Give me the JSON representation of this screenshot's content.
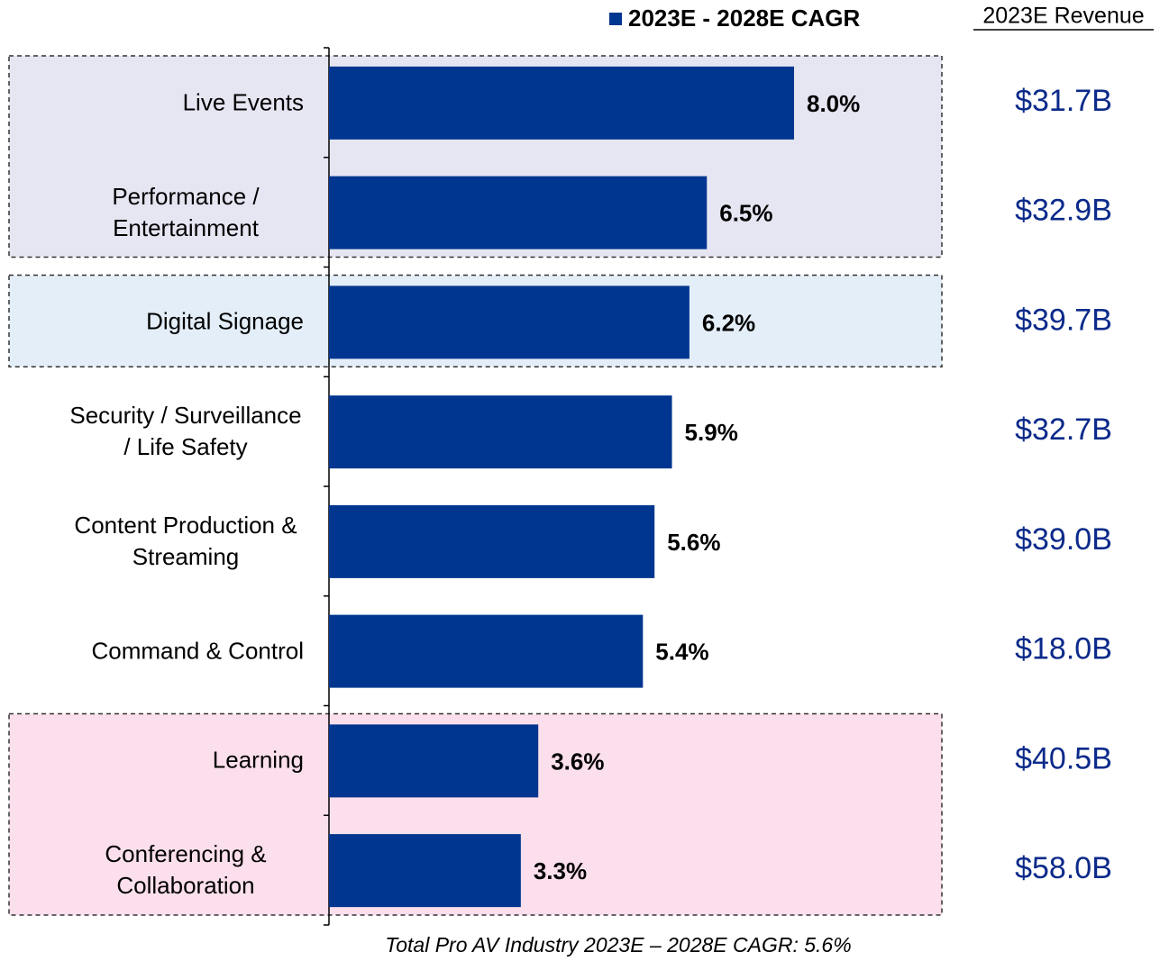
{
  "chart_data": {
    "type": "bar",
    "orientation": "horizontal",
    "categories": [
      "Live Events",
      "Performance / Entertainment",
      "Digital Signage",
      "Security / Surveillance / Life Safety",
      "Content Production & Streaming",
      "Command & Control",
      "Learning",
      "Conferencing & Collaboration"
    ],
    "series": [
      {
        "name": "2023E - 2028E CAGR",
        "color": "#00368f",
        "values": [
          8.0,
          6.5,
          6.2,
          5.9,
          5.6,
          5.4,
          3.6,
          3.3
        ],
        "value_labels": [
          "8.0%",
          "6.5%",
          "6.2%",
          "5.9%",
          "5.6%",
          "5.4%",
          "3.6%",
          "3.3%"
        ]
      }
    ],
    "xlim": [
      0,
      8
    ],
    "revenue": {
      "header": "2023E Revenue",
      "color": "#0b2a8a",
      "labels": [
        "$31.7B",
        "$32.9B",
        "$39.7B",
        "$32.7B",
        "$39.0B",
        "$18.0B",
        "$40.5B",
        "$58.0B"
      ]
    },
    "bands": [
      {
        "start": 0,
        "end": 1,
        "color": "#e6e5f2"
      },
      {
        "start": 2,
        "end": 2,
        "color": "#e3eef8"
      },
      {
        "start": 6,
        "end": 7,
        "color": "#fcdfec"
      }
    ],
    "footnote": "Total Pro AV Industry 2023E – 2028E CAGR: 5.6%"
  }
}
